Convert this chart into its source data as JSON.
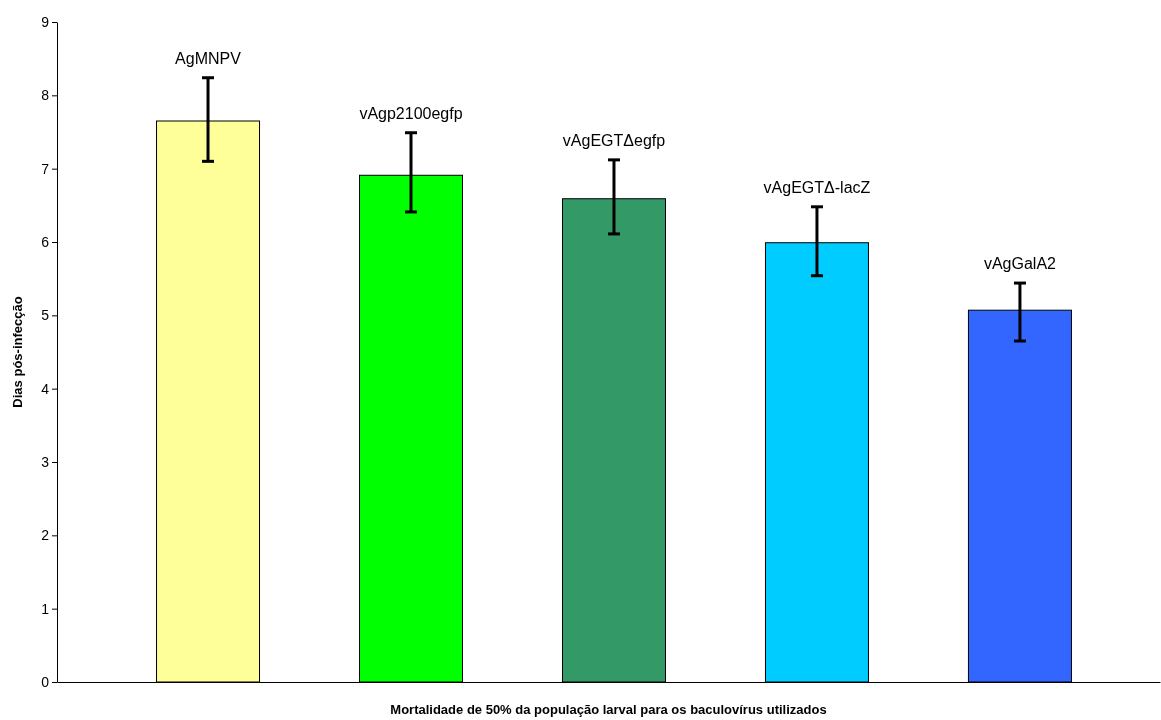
{
  "chart_data": {
    "type": "bar",
    "xlabel": "Mortalidade de 50% da população larval para os baculovírus utilizados",
    "ylabel": "Dias pós-infecção",
    "categories": [
      "AgMNPV",
      "vAgp2100egfp",
      "vAgEGTΔegfp",
      "vAgEGTΔ-lacZ",
      "vAgGalA2"
    ],
    "values": [
      7.65,
      6.91,
      6.59,
      5.99,
      5.07
    ],
    "colors": [
      "#ffff99",
      "#00ff00",
      "#339966",
      "#00ccff",
      "#3366ff"
    ],
    "errors": [
      [
        7.1,
        8.24
      ],
      [
        6.41,
        7.49
      ],
      [
        6.11,
        7.12
      ],
      [
        5.54,
        6.48
      ],
      [
        4.65,
        5.44
      ]
    ],
    "ylim": [
      0,
      9
    ],
    "yticks": [
      0,
      1,
      2,
      3,
      4,
      5,
      6,
      7,
      8,
      9
    ],
    "grid": false,
    "tick_labels": "y"
  }
}
